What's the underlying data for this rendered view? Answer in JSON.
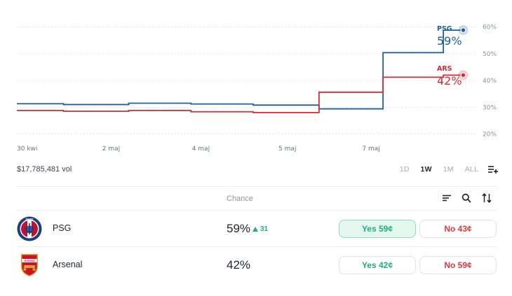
{
  "chart_data": {
    "type": "line",
    "x_ticks": [
      "30 kwi",
      "2 maj",
      "4 maj",
      "5 maj",
      "7 maj"
    ],
    "y_ticks": [
      "20%",
      "30%",
      "40%",
      "50%",
      "60%"
    ],
    "ylim": [
      20,
      60
    ],
    "grid": true,
    "series": [
      {
        "name": "PSG",
        "color": "#1f5fa0",
        "current_label": "59%",
        "points": [
          [
            0,
            31.3
          ],
          [
            7.5,
            31.0
          ],
          [
            18,
            31.5
          ],
          [
            28,
            31.2
          ],
          [
            38,
            30.8
          ],
          [
            48.5,
            30.8
          ],
          [
            48.6,
            29.4
          ],
          [
            58.8,
            29.4
          ],
          [
            58.9,
            50.4
          ],
          [
            68.5,
            50.4
          ],
          [
            68.6,
            58.8
          ],
          [
            71.8,
            58.8
          ]
        ]
      },
      {
        "name": "ARS",
        "color": "#d62a35",
        "current_label": "42%",
        "points": [
          [
            0,
            28.8
          ],
          [
            7.5,
            28.5
          ],
          [
            18,
            28.8
          ],
          [
            28,
            28.3
          ],
          [
            38,
            28.0
          ],
          [
            48.5,
            28.0
          ],
          [
            48.6,
            35.6
          ],
          [
            58.8,
            35.6
          ],
          [
            58.9,
            41.2
          ],
          [
            68.5,
            41.2
          ],
          [
            68.6,
            42.0
          ],
          [
            71.8,
            42.0
          ]
        ]
      }
    ]
  },
  "volume": "$17,785,481 vol",
  "ranges": [
    {
      "label": "1D",
      "active": false
    },
    {
      "label": "1W",
      "active": true
    },
    {
      "label": "1M",
      "active": false
    },
    {
      "label": "ALL",
      "active": false
    }
  ],
  "table_header": {
    "chance": "Chance"
  },
  "outcomes": [
    {
      "name": "PSG",
      "chance": "59%",
      "delta": "31",
      "yes": "Yes 59¢",
      "no": "No 43¢",
      "logo_text": "PARIS"
    },
    {
      "name": "Arsenal",
      "chance": "42%",
      "delta": null,
      "yes": "Yes 42¢",
      "no": "No 59¢",
      "logo_text": "Arsenal"
    }
  ]
}
